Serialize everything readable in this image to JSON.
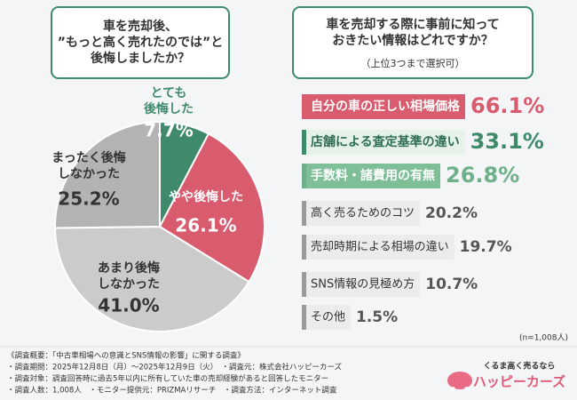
{
  "chart_data": [
    {
      "type": "pie",
      "title": "車を売却後、\n”もっと高く売れたのでは”と\n後悔しましたか？",
      "categories": [
        "とても\n後悔した",
        "やや後悔した",
        "あまり後悔\nしなかった",
        "まったく後悔\nしなかった"
      ],
      "values": [
        7.7,
        26.1,
        41.0,
        25.2
      ],
      "value_labels": [
        "7.7%",
        "26.1%",
        "41.0%",
        "25.2%"
      ],
      "colors": [
        "#3e8a6b",
        "#d95b6e",
        "#cbcbcb",
        "#b3b3b3"
      ]
    },
    {
      "type": "bar",
      "title": "車を売却する際に事前に知って\nおきたい情報はどれですか？",
      "subtitle": "（上位3つまで選択可）",
      "categories": [
        "自分の車の正しい相場価格",
        "店舗による査定基準の違い",
        "手数料・諸費用の有無",
        "高く売るためのコツ",
        "売却時期による相場の違い",
        "SNS情報の見極め方",
        "その他"
      ],
      "values": [
        66.1,
        33.1,
        26.8,
        20.2,
        19.7,
        10.7,
        1.5
      ],
      "value_labels": [
        "66.1%",
        "33.1%",
        "26.8%",
        "20.2%",
        "19.7%",
        "10.7%",
        "1.5%"
      ],
      "colors": [
        "#d95b6e",
        "#3e8a6b",
        "#6fb08a",
        "#9a9a9a",
        "#9a9a9a",
        "#9a9a9a",
        "#9a9a9a"
      ],
      "note": "(n=1,008人)"
    }
  ],
  "footer": [
    "《調査概要：「中古車相場への意識とSNS情報の影響」に関する調査》",
    "・調査期間：2025年12月8日（月）～2025年12月9日（火）　・調査元：株式会社ハッピーカーズ",
    "・調査対象：調査回答時に過去5年以内に所有していた車の売却経験があると回答したモニター",
    "・調査人数：1,008人　・モニター提供元：PRIZMAリサーチ　・調査方法：インターネット調査"
  ],
  "logo": {
    "tagline": "くるま高く売るなら",
    "name": "ハッピーカーズ"
  }
}
